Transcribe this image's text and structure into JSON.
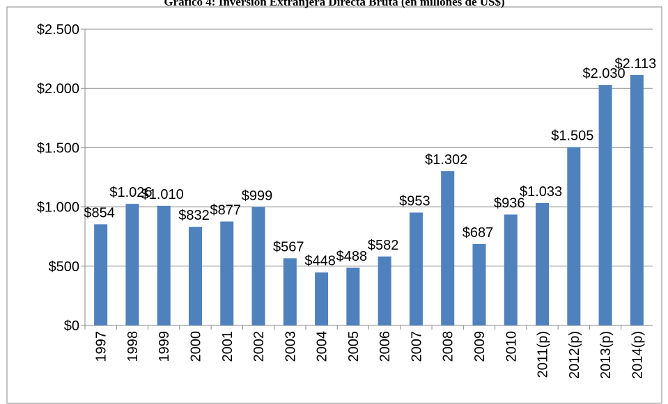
{
  "chart_data": {
    "type": "bar",
    "title": "Gráfico 4: Inversión Extranjera Directa Bruta (en millones de US$)",
    "categories": [
      "1997",
      "1998",
      "1999",
      "2000",
      "2001",
      "2002",
      "2003",
      "2004",
      "2005",
      "2006",
      "2007",
      "2008",
      "2009",
      "2010",
      "2011(p)",
      "2012(p)",
      "2013(p)",
      "2014(p)"
    ],
    "values": [
      854,
      1026,
      1010,
      832,
      877,
      999,
      567,
      448,
      488,
      582,
      953,
      1302,
      687,
      936,
      1033,
      1505,
      2030,
      2113
    ],
    "value_labels": [
      "$854",
      "$1.026",
      "$1.010",
      "$832",
      "$877",
      "$999",
      "$567",
      "$448",
      "$488",
      "$582",
      "$953",
      "$1.302",
      "$687",
      "$936",
      "$1.033",
      "$1.505",
      "$2.030",
      "$2.113"
    ],
    "color": "#4f81bd",
    "ylim": [
      0,
      2500
    ],
    "yticks": [
      {
        "value": 0,
        "label": "$0"
      },
      {
        "value": 500,
        "label": "$500"
      },
      {
        "value": 1000,
        "label": "$1.000"
      },
      {
        "value": 1500,
        "label": "$1.500"
      },
      {
        "value": 2000,
        "label": "$2.000"
      },
      {
        "value": 2500,
        "label": "$2.500"
      }
    ],
    "grid": true
  }
}
